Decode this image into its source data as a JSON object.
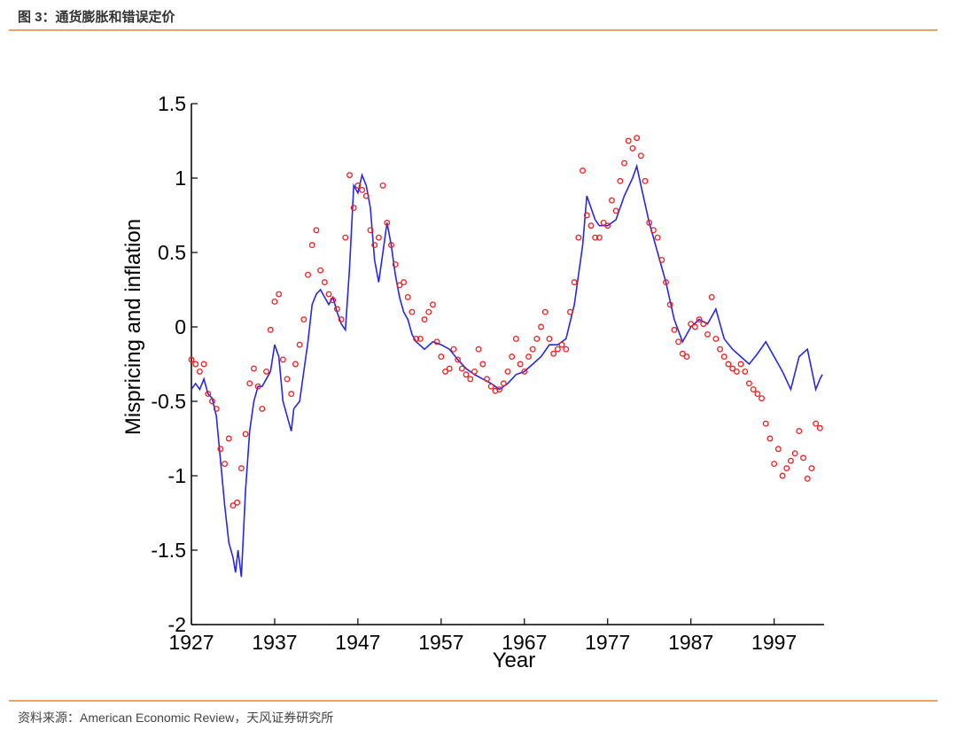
{
  "header": {
    "title": "图 3：通货膨胀和错误定价"
  },
  "footer": {
    "source": "资料来源：American Economic Review，天风证券研究所"
  },
  "chart_data": {
    "type": "line",
    "xlabel": "Year",
    "ylabel": "Mispricing and inflation",
    "xlim": [
      1927,
      2003
    ],
    "ylim": [
      -2,
      1.5
    ],
    "xticks": [
      1927,
      1937,
      1947,
      1957,
      1967,
      1977,
      1987,
      1997
    ],
    "yticks": [
      -2,
      -1.5,
      -1,
      -0.5,
      0,
      0.5,
      1,
      1.5
    ],
    "series": [
      {
        "color": "#2828e0",
        "mode": "line",
        "x": [
          1927,
          1927.5,
          1928,
          1928.5,
          1929,
          1929.5,
          1930,
          1930.5,
          1931,
          1931.5,
          1932,
          1932.3,
          1932.6,
          1933,
          1933.5,
          1934,
          1934.5,
          1935,
          1935.5,
          1936,
          1936.5,
          1937,
          1937.5,
          1938,
          1938.5,
          1939,
          1939.3,
          1940,
          1940.5,
          1941,
          1941.5,
          1942,
          1942.5,
          1943,
          1943.5,
          1944,
          1944.5,
          1945,
          1945.5,
          1946,
          1946.5,
          1947,
          1947.5,
          1948,
          1948.5,
          1949,
          1949.5,
          1950,
          1950.5,
          1951,
          1951.5,
          1952,
          1952.5,
          1953,
          1953.5,
          1954,
          1955,
          1956,
          1957,
          1958,
          1959,
          1960,
          1961,
          1962,
          1963,
          1964,
          1965,
          1966,
          1967,
          1968,
          1969,
          1970,
          1971,
          1972,
          1973,
          1974,
          1974.5,
          1975,
          1975.5,
          1976,
          1977,
          1978,
          1979,
          1980,
          1980.5,
          1981,
          1982,
          1983,
          1984,
          1985,
          1986,
          1987,
          1988,
          1989,
          1990,
          1991,
          1992,
          1993,
          1994,
          1995,
          1996,
          1997,
          1998,
          1999,
          2000,
          2001,
          2002,
          2002.5,
          2002.8
        ],
        "values": [
          -0.42,
          -0.38,
          -0.42,
          -0.35,
          -0.45,
          -0.48,
          -0.6,
          -0.9,
          -1.2,
          -1.45,
          -1.55,
          -1.65,
          -1.5,
          -1.68,
          -1.1,
          -0.7,
          -0.5,
          -0.4,
          -0.4,
          -0.35,
          -0.3,
          -0.12,
          -0.2,
          -0.5,
          -0.6,
          -0.7,
          -0.55,
          -0.5,
          -0.3,
          -0.1,
          0.15,
          0.22,
          0.25,
          0.2,
          0.15,
          0.2,
          0.1,
          0.02,
          -0.02,
          0.4,
          0.95,
          0.9,
          1.02,
          0.95,
          0.8,
          0.45,
          0.3,
          0.5,
          0.7,
          0.55,
          0.35,
          0.2,
          0.1,
          0.05,
          -0.05,
          -0.1,
          -0.15,
          -0.1,
          -0.12,
          -0.15,
          -0.22,
          -0.28,
          -0.32,
          -0.35,
          -0.38,
          -0.42,
          -0.38,
          -0.32,
          -0.3,
          -0.25,
          -0.2,
          -0.12,
          -0.12,
          -0.08,
          0.15,
          0.55,
          0.88,
          0.8,
          0.72,
          0.68,
          0.68,
          0.72,
          0.88,
          1.0,
          1.08,
          0.95,
          0.7,
          0.5,
          0.3,
          0.05,
          -0.1,
          0.0,
          0.05,
          0.02,
          0.12,
          -0.08,
          -0.15,
          -0.2,
          -0.25,
          -0.18,
          -0.1,
          -0.2,
          -0.3,
          -0.42,
          -0.2,
          -0.15,
          -0.42,
          -0.35,
          -0.32
        ]
      },
      {
        "color": "#ee2020",
        "mode": "markers",
        "x": [
          1927,
          1927.5,
          1928,
          1928.5,
          1929,
          1929.5,
          1930,
          1930.5,
          1931,
          1931.5,
          1932,
          1932.5,
          1933,
          1933.5,
          1934,
          1934.5,
          1935,
          1935.5,
          1936,
          1936.5,
          1937,
          1937.5,
          1938,
          1938.5,
          1939,
          1939.5,
          1940,
          1940.5,
          1941,
          1941.5,
          1942,
          1942.5,
          1943,
          1943.5,
          1944,
          1944.5,
          1945,
          1945.5,
          1946,
          1946.5,
          1947,
          1947.5,
          1948,
          1948.5,
          1949,
          1949.5,
          1950,
          1950.5,
          1951,
          1951.5,
          1952,
          1952.5,
          1953,
          1953.5,
          1954,
          1954.5,
          1955,
          1955.5,
          1956,
          1956.5,
          1957,
          1957.5,
          1958,
          1958.5,
          1959,
          1959.5,
          1960,
          1960.5,
          1961,
          1961.5,
          1962,
          1962.5,
          1963,
          1963.5,
          1964,
          1964.5,
          1965,
          1965.5,
          1966,
          1966.5,
          1967,
          1967.5,
          1968,
          1968.5,
          1969,
          1969.5,
          1970,
          1970.5,
          1971,
          1971.5,
          1972,
          1972.5,
          1973,
          1973.5,
          1974,
          1974.5,
          1975,
          1975.5,
          1976,
          1976.5,
          1977,
          1977.5,
          1978,
          1978.5,
          1979,
          1979.5,
          1980,
          1980.5,
          1981,
          1981.5,
          1982,
          1982.5,
          1983,
          1983.5,
          1984,
          1984.5,
          1985,
          1985.5,
          1986,
          1986.5,
          1987,
          1987.5,
          1988,
          1988.5,
          1989,
          1989.5,
          1990,
          1990.5,
          1991,
          1991.5,
          1992,
          1992.5,
          1993,
          1993.5,
          1994,
          1994.5,
          1995,
          1995.5,
          1996,
          1996.5,
          1997,
          1997.5,
          1998,
          1998.5,
          1999,
          1999.5,
          2000,
          2000.5,
          2001,
          2001.5,
          2002,
          2002.5
        ],
        "values": [
          -0.22,
          -0.25,
          -0.3,
          -0.25,
          -0.45,
          -0.5,
          -0.55,
          -0.82,
          -0.92,
          -0.75,
          -1.2,
          -1.18,
          -0.95,
          -0.72,
          -0.38,
          -0.28,
          -0.4,
          -0.55,
          -0.3,
          -0.02,
          0.17,
          0.22,
          -0.22,
          -0.35,
          -0.45,
          -0.25,
          -0.12,
          0.05,
          0.35,
          0.55,
          0.65,
          0.38,
          0.3,
          0.22,
          0.18,
          0.12,
          0.05,
          0.6,
          1.02,
          0.8,
          0.95,
          0.92,
          0.88,
          0.65,
          0.55,
          0.6,
          0.95,
          0.7,
          0.55,
          0.42,
          0.28,
          0.3,
          0.2,
          0.1,
          -0.08,
          -0.08,
          0.05,
          0.1,
          0.15,
          -0.1,
          -0.2,
          -0.3,
          -0.28,
          -0.15,
          -0.22,
          -0.28,
          -0.32,
          -0.35,
          -0.3,
          -0.15,
          -0.25,
          -0.35,
          -0.4,
          -0.43,
          -0.42,
          -0.38,
          -0.3,
          -0.2,
          -0.08,
          -0.25,
          -0.3,
          -0.2,
          -0.15,
          -0.08,
          0.0,
          0.1,
          -0.08,
          -0.18,
          -0.15,
          -0.12,
          -0.15,
          0.1,
          0.3,
          0.6,
          1.05,
          0.75,
          0.68,
          0.6,
          0.6,
          0.7,
          0.68,
          0.85,
          0.78,
          0.98,
          1.1,
          1.25,
          1.2,
          1.27,
          1.15,
          0.98,
          0.7,
          0.65,
          0.6,
          0.45,
          0.3,
          0.15,
          -0.02,
          -0.1,
          -0.18,
          -0.2,
          0.02,
          0.0,
          0.05,
          0.02,
          -0.05,
          0.2,
          -0.08,
          -0.15,
          -0.2,
          -0.25,
          -0.28,
          -0.3,
          -0.25,
          -0.3,
          -0.38,
          -0.42,
          -0.45,
          -0.48,
          -0.65,
          -0.75,
          -0.92,
          -0.82,
          -1.0,
          -0.95,
          -0.9,
          -0.85,
          -0.7,
          -0.88,
          -1.02,
          -0.95,
          -0.65,
          -0.68
        ]
      }
    ]
  }
}
